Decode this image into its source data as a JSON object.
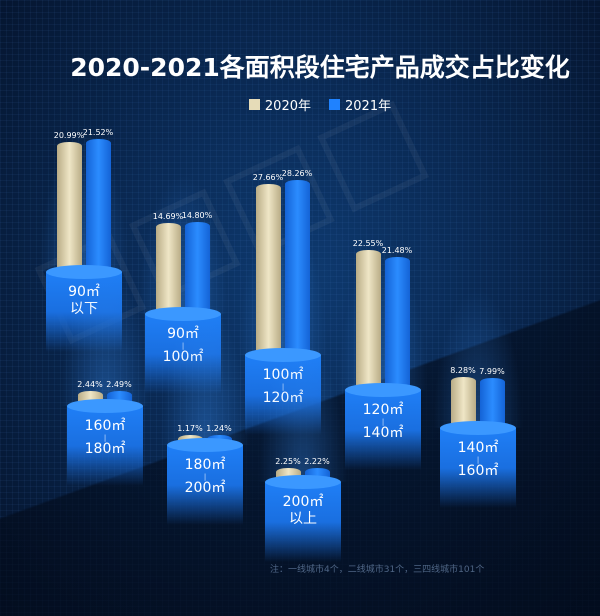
{
  "chart_data": {
    "type": "bar",
    "title": "2020-2021各面积段住宅产品成交占比变化",
    "categories": [
      {
        "lines": [
          "90㎡",
          "以下"
        ],
        "range": false
      },
      {
        "lines": [
          "90㎡",
          "100㎡"
        ],
        "range": true
      },
      {
        "lines": [
          "100㎡",
          "120㎡"
        ],
        "range": true
      },
      {
        "lines": [
          "120㎡",
          "140㎡"
        ],
        "range": true
      },
      {
        "lines": [
          "140㎡",
          "160㎡"
        ],
        "range": true
      },
      {
        "lines": [
          "160㎡",
          "180㎡"
        ],
        "range": true
      },
      {
        "lines": [
          "180㎡",
          "200㎡"
        ],
        "range": true
      },
      {
        "lines": [
          "200㎡",
          "以上"
        ],
        "range": false
      }
    ],
    "series": [
      {
        "name": "2020年",
        "color": "#e6dcb8",
        "values": [
          20.99,
          14.69,
          27.66,
          22.55,
          8.28,
          2.44,
          1.17,
          2.25
        ],
        "labels": [
          "20.99%",
          "14.69%",
          "27.66%",
          "22.55%",
          "8.28%",
          "2.44%",
          "1.17%",
          "2.25%"
        ]
      },
      {
        "name": "2021年",
        "color": "#1f82ff",
        "values": [
          21.52,
          14.8,
          28.26,
          21.48,
          7.99,
          2.49,
          1.24,
          2.22
        ],
        "labels": [
          "21.52%",
          "14.80%",
          "28.26%",
          "21.48%",
          "7.99%",
          "2.49%",
          "1.24%",
          "2.22%"
        ]
      }
    ],
    "legend_position": "top-center",
    "grid": false,
    "note": "注：一线城市4个，二线城市31个，三四线城市101个"
  }
}
